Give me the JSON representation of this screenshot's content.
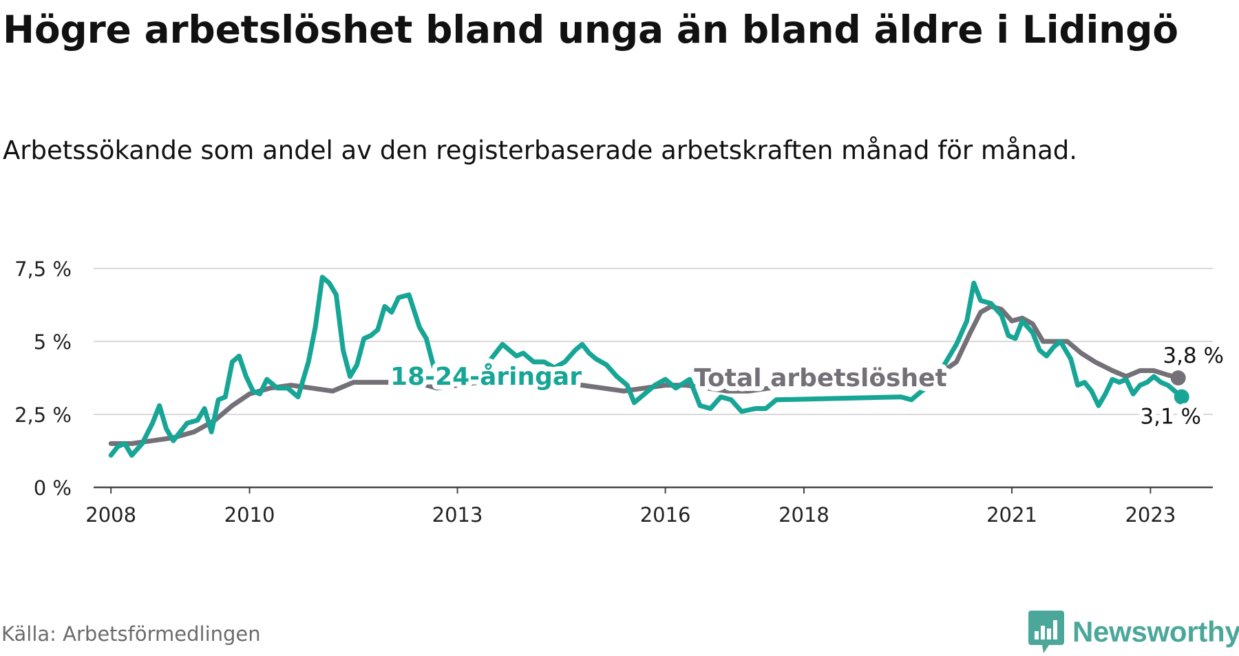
{
  "header": {
    "title": "Högre arbetslöshet bland unga än bland äldre i Lidingö",
    "subtitle": "Arbetssökande som andel av den registerbaserade arbetskraften månad för månad."
  },
  "footer": {
    "source": "Källa: Arbetsförmedlingen",
    "brand": "Newsworthy",
    "brand_icon": "bar-chart-bubble-icon"
  },
  "colors": {
    "total": "#747078",
    "youth": "#17a596",
    "gridline": "#d9d9d9",
    "axis": "#444444",
    "brand": "#4aa79a"
  },
  "chart_data": {
    "type": "line",
    "title": "Högre arbetslöshet bland unga än bland äldre i Lidingö",
    "xlabel": "",
    "ylabel": "",
    "xlim": [
      2007.75,
      2023.9
    ],
    "ylim": [
      0,
      7.5
    ],
    "grid": true,
    "x_ticks": [
      2008,
      2010,
      2013,
      2016,
      2018,
      2021,
      2023
    ],
    "x_tick_labels": [
      "2008",
      "2010",
      "2013",
      "2016",
      "2018",
      "2021",
      "2023"
    ],
    "y_ticks": [
      0,
      2.5,
      5,
      7.5
    ],
    "y_tick_labels": [
      "0 %",
      "2,5 %",
      "5 %",
      "7,5 %"
    ],
    "series": [
      {
        "name": "Total arbetslöshet",
        "label": "Total arbetslöshet",
        "end_label": "3,8 %",
        "points": [
          [
            2008.0,
            1.5
          ],
          [
            2008.3,
            1.5
          ],
          [
            2008.6,
            1.6
          ],
          [
            2008.9,
            1.7
          ],
          [
            2009.2,
            1.9
          ],
          [
            2009.5,
            2.3
          ],
          [
            2009.75,
            2.8
          ],
          [
            2010.0,
            3.2
          ],
          [
            2010.3,
            3.4
          ],
          [
            2010.6,
            3.5
          ],
          [
            2010.9,
            3.4
          ],
          [
            2011.2,
            3.3
          ],
          [
            2011.5,
            3.6
          ],
          [
            2011.8,
            3.6
          ],
          [
            2012.1,
            3.6
          ],
          [
            2012.4,
            3.6
          ],
          [
            2012.7,
            3.4
          ],
          [
            2013.0,
            3.5
          ],
          [
            2013.3,
            3.6
          ],
          [
            2013.6,
            3.7
          ],
          [
            2013.9,
            3.6
          ],
          [
            2014.2,
            3.6
          ],
          [
            2014.5,
            3.6
          ],
          [
            2014.8,
            3.5
          ],
          [
            2015.1,
            3.4
          ],
          [
            2015.4,
            3.3
          ],
          [
            2015.7,
            3.4
          ],
          [
            2016.0,
            3.5
          ],
          [
            2016.3,
            3.5
          ],
          [
            2016.6,
            3.4
          ],
          [
            2016.9,
            3.3
          ],
          [
            2017.2,
            3.3
          ],
          [
            2017.5,
            3.4
          ],
          [
            2017.8,
            3.5
          ],
          [
            2018.1,
            3.6
          ],
          [
            2018.4,
            3.6
          ],
          [
            2018.7,
            3.6
          ],
          [
            2019.0,
            3.7
          ],
          [
            2019.3,
            3.7
          ],
          [
            2019.6,
            3.7
          ],
          [
            2019.9,
            3.8
          ],
          [
            2020.2,
            4.3
          ],
          [
            2020.4,
            5.3
          ],
          [
            2020.55,
            6.0
          ],
          [
            2020.7,
            6.2
          ],
          [
            2020.85,
            6.1
          ],
          [
            2021.0,
            5.7
          ],
          [
            2021.15,
            5.8
          ],
          [
            2021.3,
            5.6
          ],
          [
            2021.45,
            5.0
          ],
          [
            2021.6,
            5.0
          ],
          [
            2021.8,
            5.0
          ],
          [
            2022.0,
            4.6
          ],
          [
            2022.2,
            4.3
          ],
          [
            2022.45,
            4.0
          ],
          [
            2022.65,
            3.8
          ],
          [
            2022.85,
            4.0
          ],
          [
            2023.05,
            4.0
          ],
          [
            2023.25,
            3.85
          ],
          [
            2023.4,
            3.75
          ]
        ]
      },
      {
        "name": "18-24-åringar",
        "label": "18-24-åringar",
        "end_label": "3,1 %",
        "points": [
          [
            2008.0,
            1.1
          ],
          [
            2008.1,
            1.4
          ],
          [
            2008.2,
            1.5
          ],
          [
            2008.3,
            1.1
          ],
          [
            2008.45,
            1.5
          ],
          [
            2008.6,
            2.2
          ],
          [
            2008.7,
            2.8
          ],
          [
            2008.8,
            2.0
          ],
          [
            2008.9,
            1.6
          ],
          [
            2009.1,
            2.2
          ],
          [
            2009.25,
            2.3
          ],
          [
            2009.35,
            2.7
          ],
          [
            2009.45,
            1.9
          ],
          [
            2009.55,
            3.0
          ],
          [
            2009.65,
            3.1
          ],
          [
            2009.75,
            4.3
          ],
          [
            2009.85,
            4.5
          ],
          [
            2009.95,
            3.8
          ],
          [
            2010.05,
            3.3
          ],
          [
            2010.15,
            3.2
          ],
          [
            2010.25,
            3.7
          ],
          [
            2010.4,
            3.4
          ],
          [
            2010.55,
            3.4
          ],
          [
            2010.7,
            3.1
          ],
          [
            2010.85,
            4.3
          ],
          [
            2010.95,
            5.5
          ],
          [
            2011.05,
            7.2
          ],
          [
            2011.15,
            7.0
          ],
          [
            2011.25,
            6.6
          ],
          [
            2011.35,
            4.7
          ],
          [
            2011.45,
            3.8
          ],
          [
            2011.55,
            4.2
          ],
          [
            2011.65,
            5.1
          ],
          [
            2011.75,
            5.2
          ],
          [
            2011.85,
            5.4
          ],
          [
            2011.95,
            6.2
          ],
          [
            2012.05,
            6.0
          ],
          [
            2012.15,
            6.5
          ],
          [
            2012.3,
            6.6
          ],
          [
            2012.45,
            5.5
          ],
          [
            2012.55,
            5.1
          ],
          [
            2012.65,
            4.2
          ],
          [
            2012.75,
            3.6
          ],
          [
            2013.25,
            3.7
          ],
          [
            2013.45,
            4.3
          ],
          [
            2013.55,
            4.6
          ],
          [
            2013.65,
            4.9
          ],
          [
            2013.75,
            4.7
          ],
          [
            2013.85,
            4.5
          ],
          [
            2013.95,
            4.6
          ],
          [
            2014.1,
            4.3
          ],
          [
            2014.25,
            4.3
          ],
          [
            2014.4,
            4.1
          ],
          [
            2014.55,
            4.3
          ],
          [
            2014.7,
            4.7
          ],
          [
            2014.8,
            4.9
          ],
          [
            2014.9,
            4.6
          ],
          [
            2015.0,
            4.4
          ],
          [
            2015.15,
            4.2
          ],
          [
            2015.3,
            3.8
          ],
          [
            2015.45,
            3.5
          ],
          [
            2015.55,
            2.9
          ],
          [
            2015.7,
            3.2
          ],
          [
            2015.85,
            3.5
          ],
          [
            2016.0,
            3.7
          ],
          [
            2016.15,
            3.4
          ],
          [
            2016.35,
            3.7
          ],
          [
            2016.5,
            2.8
          ],
          [
            2016.65,
            2.7
          ],
          [
            2016.8,
            3.1
          ],
          [
            2016.95,
            3.0
          ],
          [
            2017.1,
            2.6
          ],
          [
            2017.3,
            2.7
          ],
          [
            2017.45,
            2.7
          ],
          [
            2017.6,
            3.0
          ],
          [
            2019.4,
            3.1
          ],
          [
            2019.55,
            3.0
          ],
          [
            2019.7,
            3.3
          ],
          [
            2019.85,
            3.5
          ],
          [
            2020.05,
            4.3
          ],
          [
            2020.2,
            4.9
          ],
          [
            2020.35,
            5.7
          ],
          [
            2020.45,
            7.0
          ],
          [
            2020.55,
            6.4
          ],
          [
            2020.7,
            6.3
          ],
          [
            2020.85,
            5.9
          ],
          [
            2020.95,
            5.2
          ],
          [
            2021.05,
            5.1
          ],
          [
            2021.15,
            5.7
          ],
          [
            2021.3,
            5.3
          ],
          [
            2021.4,
            4.7
          ],
          [
            2021.5,
            4.5
          ],
          [
            2021.6,
            4.8
          ],
          [
            2021.7,
            5.0
          ],
          [
            2021.85,
            4.4
          ],
          [
            2021.95,
            3.5
          ],
          [
            2022.05,
            3.6
          ],
          [
            2022.15,
            3.3
          ],
          [
            2022.25,
            2.8
          ],
          [
            2022.35,
            3.2
          ],
          [
            2022.45,
            3.7
          ],
          [
            2022.55,
            3.6
          ],
          [
            2022.65,
            3.7
          ],
          [
            2022.75,
            3.2
          ],
          [
            2022.85,
            3.5
          ],
          [
            2022.95,
            3.6
          ],
          [
            2023.05,
            3.8
          ],
          [
            2023.15,
            3.6
          ],
          [
            2023.25,
            3.5
          ],
          [
            2023.35,
            3.3
          ],
          [
            2023.45,
            3.1
          ]
        ]
      }
    ]
  }
}
